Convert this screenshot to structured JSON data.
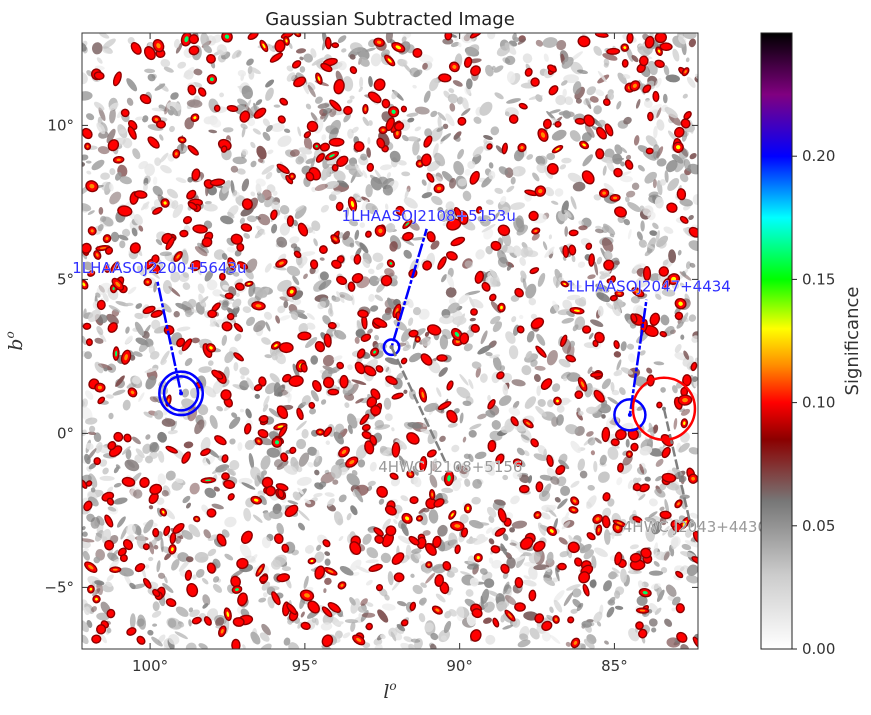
{
  "chart_data": {
    "type": "heatmap",
    "title": "Gaussian Subtracted Image",
    "xlabel": "l",
    "xlabel_sup": "o",
    "ylabel": "b",
    "ylabel_sup": "o",
    "xlim": [
      102.2,
      82.3
    ],
    "ylim": [
      -7.0,
      13.0
    ],
    "x_ticks": [
      {
        "value": 100,
        "label": "100°"
      },
      {
        "value": 95,
        "label": "95°"
      },
      {
        "value": 90,
        "label": "90°"
      },
      {
        "value": 85,
        "label": "85°"
      }
    ],
    "y_ticks": [
      {
        "value": 10,
        "label": "10°"
      },
      {
        "value": 5,
        "label": "5°"
      },
      {
        "value": 0,
        "label": "0°"
      },
      {
        "value": -5,
        "label": "−5°"
      }
    ],
    "colorbar": {
      "label": "Significance",
      "min": 0.0,
      "max": 0.25,
      "ticks": [
        {
          "value": 0.0,
          "label": "0.00"
        },
        {
          "value": 0.05,
          "label": "0.05"
        },
        {
          "value": 0.1,
          "label": "0.10"
        },
        {
          "value": 0.15,
          "label": "0.15"
        },
        {
          "value": 0.2,
          "label": "0.20"
        }
      ],
      "stops": [
        {
          "value": 0.0,
          "color": "#ffffff"
        },
        {
          "value": 0.03,
          "color": "#cccccc"
        },
        {
          "value": 0.06,
          "color": "#777777"
        },
        {
          "value": 0.085,
          "color": "#8b0000"
        },
        {
          "value": 0.1,
          "color": "#ff0000"
        },
        {
          "value": 0.115,
          "color": "#ff8c00"
        },
        {
          "value": 0.13,
          "color": "#ffff00"
        },
        {
          "value": 0.15,
          "color": "#00ff00"
        },
        {
          "value": 0.175,
          "color": "#00ffff"
        },
        {
          "value": 0.2,
          "color": "#0000ff"
        },
        {
          "value": 0.225,
          "color": "#800080"
        },
        {
          "value": 0.25,
          "color": "#000000"
        }
      ]
    },
    "sources": [
      {
        "name": "1LHAASO J2200+5643u",
        "label": "1LHAASOJ2200+5643u",
        "catalog": "1LHAASO",
        "l": 99.0,
        "b": 1.3,
        "radii_deg": [
          0.55,
          0.7
        ],
        "label_l": 99.7,
        "label_b": 5.2,
        "color": "#0000ff"
      },
      {
        "name": "1LHAASO J2108+5153u",
        "label": "1LHAASOJ2108+5153u",
        "catalog": "1LHAASO",
        "l": 92.2,
        "b": 2.8,
        "radii_deg": [
          0.25
        ],
        "label_l": 91.0,
        "label_b": 6.9,
        "color": "#0000ff"
      },
      {
        "name": "1LHAASO J2047+4434",
        "label": "1LHAASOJ2047+4434",
        "catalog": "1LHAASO",
        "l": 84.5,
        "b": 0.6,
        "radii_deg": [
          0.5
        ],
        "label_l": 83.9,
        "label_b": 4.6,
        "color": "#0000ff"
      },
      {
        "name": "4HWC J2108+5156",
        "label": "4HWC J2108+5156",
        "catalog": "4HWC",
        "l": 92.2,
        "b": 2.8,
        "radii_deg": [],
        "label_l": 90.3,
        "label_b": -1.25,
        "color": "#808080"
      },
      {
        "name": "4HWC J2043+4430",
        "label": "4HWC J2043+4430",
        "catalog": "4HWC",
        "l": 83.4,
        "b": 0.8,
        "radii_deg": [
          1.0
        ],
        "label_l": 82.4,
        "label_b": -3.2,
        "color": "#808080",
        "circle_color": "#ff0000"
      }
    ]
  }
}
